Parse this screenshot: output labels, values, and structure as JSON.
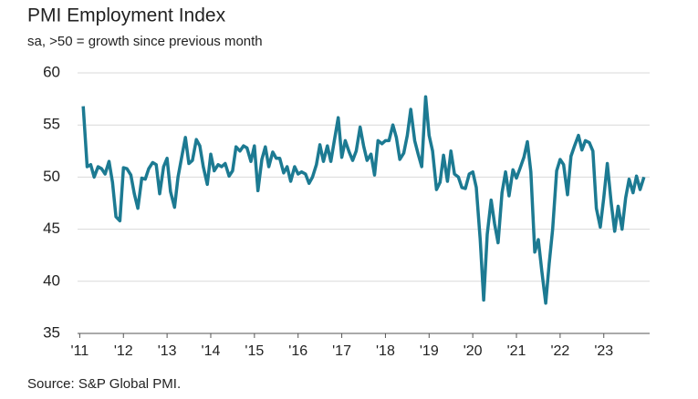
{
  "chart_data": {
    "type": "line",
    "title": "PMI Employment Index",
    "subtitle": "sa, >50 = growth since previous month",
    "source": "Source: S&P Global PMI.",
    "xlim": [
      2010.95,
      2024.05
    ],
    "xticks": [
      {
        "value": 2011,
        "label": "'11"
      },
      {
        "value": 2012,
        "label": "'12"
      },
      {
        "value": 2013,
        "label": "'13"
      },
      {
        "value": 2014,
        "label": "'14"
      },
      {
        "value": 2015,
        "label": "'15"
      },
      {
        "value": 2016,
        "label": "'16"
      },
      {
        "value": 2017,
        "label": "'17"
      },
      {
        "value": 2018,
        "label": "'18"
      },
      {
        "value": 2019,
        "label": "'19"
      },
      {
        "value": 2020,
        "label": "'20"
      },
      {
        "value": 2021,
        "label": "'21"
      },
      {
        "value": 2022,
        "label": "'22"
      },
      {
        "value": 2023,
        "label": "'23"
      }
    ],
    "ylim": [
      35,
      60
    ],
    "yticks": [
      35,
      40,
      45,
      50,
      55,
      60
    ],
    "grid": true,
    "x": [
      2011.08,
      2011.17,
      2011.25,
      2011.33,
      2011.42,
      2011.5,
      2011.58,
      2011.67,
      2011.75,
      2011.83,
      2011.92,
      2012,
      2012.08,
      2012.17,
      2012.25,
      2012.33,
      2012.42,
      2012.5,
      2012.58,
      2012.67,
      2012.75,
      2012.83,
      2012.92,
      2013,
      2013.08,
      2013.17,
      2013.25,
      2013.33,
      2013.42,
      2013.5,
      2013.58,
      2013.67,
      2013.75,
      2013.83,
      2013.92,
      2014,
      2014.08,
      2014.17,
      2014.25,
      2014.33,
      2014.42,
      2014.5,
      2014.58,
      2014.67,
      2014.75,
      2014.83,
      2014.92,
      2015,
      2015.08,
      2015.17,
      2015.25,
      2015.33,
      2015.42,
      2015.5,
      2015.58,
      2015.67,
      2015.75,
      2015.83,
      2015.92,
      2016,
      2016.08,
      2016.17,
      2016.25,
      2016.33,
      2016.42,
      2016.5,
      2016.58,
      2016.67,
      2016.75,
      2016.83,
      2016.92,
      2017,
      2017.08,
      2017.17,
      2017.25,
      2017.33,
      2017.42,
      2017.5,
      2017.58,
      2017.67,
      2017.75,
      2017.83,
      2017.92,
      2018,
      2018.08,
      2018.17,
      2018.25,
      2018.33,
      2018.42,
      2018.5,
      2018.58,
      2018.67,
      2018.75,
      2018.83,
      2018.92,
      2019,
      2019.08,
      2019.17,
      2019.25,
      2019.33,
      2019.42,
      2019.5,
      2019.58,
      2019.67,
      2019.75,
      2019.83,
      2019.92,
      2020,
      2020.08,
      2020.17,
      2020.25,
      2020.33,
      2020.42,
      2020.5,
      2020.58,
      2020.67,
      2020.75,
      2020.83,
      2020.92,
      2021,
      2021.08,
      2021.17,
      2021.25,
      2021.33,
      2021.42,
      2021.5,
      2021.58,
      2021.67,
      2021.75,
      2021.83,
      2021.92,
      2022,
      2022.08,
      2022.17,
      2022.25,
      2022.33,
      2022.42,
      2022.5,
      2022.58,
      2022.67,
      2022.75,
      2022.83,
      2022.92,
      2023,
      2023.08,
      2023.17,
      2023.25,
      2023.33,
      2023.42,
      2023.5,
      2023.58,
      2023.67,
      2023.75,
      2023.83,
      2023.92
    ],
    "series": [
      {
        "name": "PMI Employment Index",
        "color": "#1c7a92",
        "values": [
          56.8,
          51.0,
          51.2,
          50.0,
          51.0,
          50.8,
          50.3,
          51.5,
          49.5,
          46.2,
          45.8,
          50.9,
          50.8,
          50.2,
          48.4,
          47.0,
          49.9,
          49.8,
          50.8,
          51.4,
          51.2,
          48.4,
          51.0,
          51.8,
          48.6,
          47.1,
          50.0,
          51.8,
          53.8,
          51.3,
          51.6,
          53.6,
          53.0,
          51.0,
          49.3,
          52.2,
          50.6,
          51.2,
          51.0,
          51.3,
          50.1,
          50.6,
          52.9,
          52.5,
          53.0,
          52.8,
          51.5,
          53.0,
          48.7,
          51.7,
          52.9,
          51.0,
          52.4,
          51.8,
          51.8,
          50.4,
          51.0,
          49.6,
          51.0,
          50.3,
          50.5,
          50.3,
          49.4,
          50.0,
          51.2,
          53.1,
          51.5,
          53.0,
          51.5,
          53.5,
          55.7,
          51.9,
          53.5,
          52.4,
          51.6,
          52.5,
          54.8,
          53.0,
          51.6,
          52.2,
          50.2,
          53.5,
          53.2,
          53.5,
          53.5,
          55.0,
          53.8,
          51.7,
          52.3,
          54.0,
          56.5,
          53.5,
          52.2,
          51.0,
          57.7,
          54.0,
          52.5,
          48.8,
          49.5,
          52.1,
          49.6,
          52.5,
          50.3,
          50.0,
          49.0,
          48.9,
          50.3,
          50.5,
          49.0,
          44.0,
          38.2,
          44.5,
          47.8,
          45.5,
          43.7,
          48.5,
          50.5,
          48.2,
          50.7,
          49.9,
          50.8,
          51.9,
          53.4,
          50.5,
          42.8,
          44.0,
          41.0,
          37.9,
          41.7,
          45.0,
          50.6,
          51.7,
          51.2,
          48.3,
          52.0,
          53.0,
          54.0,
          52.6,
          53.5,
          53.3,
          52.5,
          47.0,
          45.2,
          48.0,
          51.3,
          47.5,
          44.8,
          47.2,
          45.0,
          48.0,
          49.8,
          48.5,
          50.1,
          48.8,
          50.0
        ]
      }
    ]
  }
}
